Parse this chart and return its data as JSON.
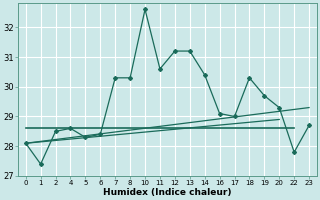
{
  "xlabel": "Humidex (Indice chaleur)",
  "bg_color": "#cce8e8",
  "grid_color": "#ffffff",
  "line_color": "#1a6b5a",
  "x_labels": [
    "0",
    "1",
    "2",
    "4",
    "5",
    "6",
    "7",
    "8",
    "10",
    "11",
    "12",
    "13",
    "14",
    "16",
    "17",
    "18",
    "19",
    "20",
    "22",
    "23"
  ],
  "ylim": [
    27.0,
    32.8
  ],
  "yticks": [
    27,
    28,
    29,
    30,
    31,
    32
  ],
  "series_main": {
    "y": [
      28.1,
      27.4,
      28.5,
      28.6,
      28.3,
      28.4,
      30.3,
      30.3,
      32.6,
      30.6,
      31.2,
      31.2,
      30.4,
      29.1,
      29.0,
      30.3,
      29.7,
      29.3,
      27.8,
      28.7
    ]
  },
  "series_trend1": {
    "x": [
      0,
      19
    ],
    "y": [
      28.1,
      29.3
    ]
  },
  "series_trend2": {
    "x": [
      0,
      17
    ],
    "y": [
      28.1,
      28.9
    ]
  },
  "series_flat": {
    "x": [
      0,
      18
    ],
    "y": [
      28.6,
      28.6
    ]
  }
}
